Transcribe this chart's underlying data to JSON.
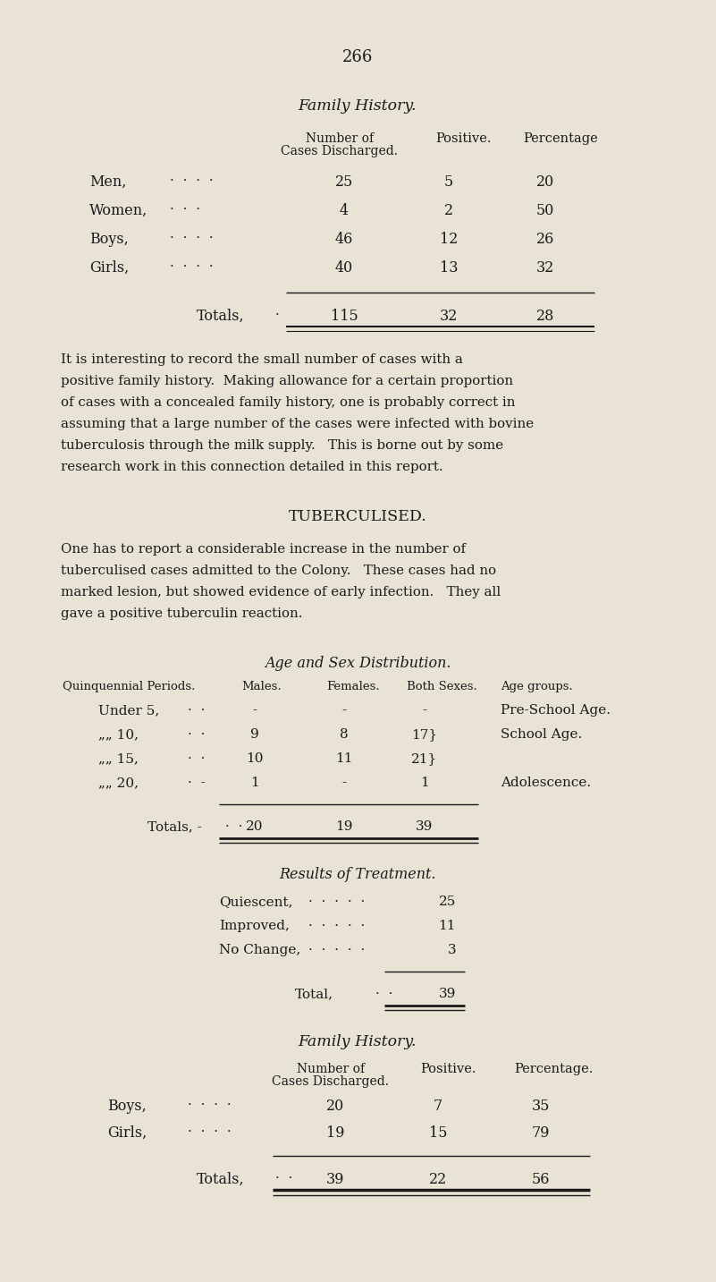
{
  "page_number": "266",
  "bg_color": "#e8e3d5",
  "text_color": "#1a1a1a",
  "section1_title": "Family History.",
  "table1_col1": "Number of\nCases Discharged.",
  "table1_col2": "Positive.",
  "table1_col3": "Percentage",
  "t1_rows": [
    [
      "Men,",
      25,
      5,
      20
    ],
    [
      "Women,",
      4,
      2,
      50
    ],
    [
      "Boys,",
      46,
      12,
      26
    ],
    [
      "Girls,",
      40,
      13,
      32
    ]
  ],
  "t1_totals": [
    115,
    32,
    28
  ],
  "para1_lines": [
    "It is interesting to record the small number of cases with a",
    "positive family history.  Making allowance for a certain proportion",
    "of cases with a concealed family history, one is probably correct in",
    "assuming that a large number of the cases were infected with bovine",
    "tuberculosis through the milk supply.   This is borne out by some",
    "research work in this connection detailed in this report."
  ],
  "section2_title": "TUBERCULISED.",
  "para2_lines": [
    "One has to report a considerable increase in the number of",
    "tuberculised cases admitted to the Colony.   These cases had no",
    "marked lesion, but showed evidence of early infection.   They all",
    "gave a positive tuberculin reaction."
  ],
  "asd_title": "Age and Sex Distribution.",
  "asd_headers": [
    "Quinquennial Periods.",
    "Males.",
    "Females.",
    "Both Sexes.",
    "Age groups."
  ],
  "asd_rows": [
    [
      "Under 5,",
      "-",
      "-",
      "-",
      "Pre-School Age."
    ],
    [
      "„„ 10,",
      "9",
      "8",
      "17}",
      "School Age."
    ],
    [
      "„„ 15,",
      "10",
      "11",
      "21}",
      ""
    ],
    [
      "„„ 20,",
      "1",
      "-",
      "1",
      "Adolescence."
    ]
  ],
  "asd_totals": [
    "20",
    "19",
    "39"
  ],
  "rot_title": "Results of Treatment.",
  "rot_rows": [
    [
      "Quiescent,",
      "25"
    ],
    [
      "Improved,",
      "11"
    ],
    [
      "No Change,",
      "3"
    ]
  ],
  "rot_total": "39",
  "section3_title": "Family History.",
  "t3_col1": "Number of\nCases Discharged.",
  "t3_col2": "Positive.",
  "t3_col3": "Percentage.",
  "t3_rows": [
    [
      "Boys,",
      20,
      7,
      35
    ],
    [
      "Girls,",
      19,
      15,
      79
    ]
  ],
  "t3_totals": [
    39,
    22,
    56
  ]
}
